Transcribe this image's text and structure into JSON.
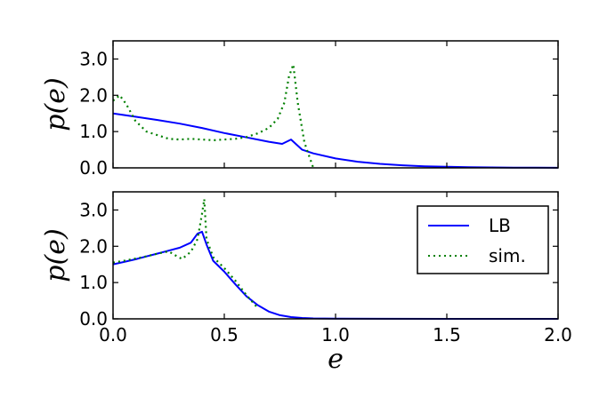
{
  "chart_data": [
    {
      "type": "line",
      "title": "",
      "xlabel": "",
      "ylabel": "p(e)",
      "xlim": [
        0.0,
        2.0
      ],
      "ylim": [
        0.0,
        3.5
      ],
      "xticks": [
        "0.0",
        "0.5",
        "1.0",
        "1.5",
        "2.0"
      ],
      "xticks_shown": false,
      "yticks": [
        "0.0",
        "1.0",
        "2.0",
        "3.0"
      ],
      "grid": false,
      "legend": false,
      "series": [
        {
          "name": "LB",
          "color": "#0000ff",
          "style": "solid",
          "x": [
            0.0,
            0.1,
            0.2,
            0.3,
            0.4,
            0.5,
            0.6,
            0.7,
            0.76,
            0.8,
            0.85,
            0.9,
            1.0,
            1.1,
            1.2,
            1.3,
            1.4,
            1.5,
            1.6,
            1.7,
            1.8,
            1.9,
            2.0
          ],
          "y": [
            1.5,
            1.41,
            1.32,
            1.22,
            1.1,
            0.96,
            0.84,
            0.72,
            0.66,
            0.78,
            0.5,
            0.4,
            0.26,
            0.17,
            0.11,
            0.07,
            0.045,
            0.03,
            0.02,
            0.012,
            0.008,
            0.005,
            0.003
          ]
        },
        {
          "name": "sim.",
          "color": "#008000",
          "style": "dotted",
          "x": [
            0.0,
            0.03,
            0.06,
            0.1,
            0.15,
            0.2,
            0.25,
            0.3,
            0.35,
            0.4,
            0.45,
            0.5,
            0.55,
            0.6,
            0.65,
            0.7,
            0.74,
            0.77,
            0.79,
            0.81,
            0.83,
            0.86,
            0.9
          ],
          "y": [
            1.85,
            2.0,
            1.75,
            1.3,
            1.0,
            0.9,
            0.8,
            0.78,
            0.8,
            0.78,
            0.76,
            0.78,
            0.8,
            0.85,
            0.95,
            1.1,
            1.35,
            1.8,
            2.5,
            2.85,
            1.8,
            0.7,
            0.0
          ]
        }
      ]
    },
    {
      "type": "line",
      "title": "",
      "xlabel": "e",
      "ylabel": "p(e)",
      "xlim": [
        0.0,
        2.0
      ],
      "ylim": [
        0.0,
        3.5
      ],
      "xticks": [
        "0.0",
        "0.5",
        "1.0",
        "1.5",
        "2.0"
      ],
      "xticks_shown": true,
      "yticks": [
        "0.0",
        "1.0",
        "2.0",
        "3.0"
      ],
      "grid": false,
      "legend": "top-right",
      "series": [
        {
          "name": "LB",
          "color": "#0000ff",
          "style": "solid",
          "x": [
            0.0,
            0.05,
            0.1,
            0.15,
            0.2,
            0.25,
            0.3,
            0.35,
            0.38,
            0.4,
            0.42,
            0.45,
            0.5,
            0.55,
            0.6,
            0.65,
            0.7,
            0.75,
            0.8,
            0.85,
            0.9,
            1.0,
            1.2,
            1.5,
            2.0
          ],
          "y": [
            1.5,
            1.57,
            1.64,
            1.72,
            1.8,
            1.88,
            1.96,
            2.1,
            2.35,
            2.4,
            2.05,
            1.6,
            1.3,
            0.95,
            0.62,
            0.38,
            0.2,
            0.1,
            0.05,
            0.025,
            0.012,
            0.005,
            0.002,
            0.0,
            0.0
          ]
        },
        {
          "name": "sim.",
          "color": "#008000",
          "style": "dotted",
          "x": [
            0.0,
            0.05,
            0.1,
            0.15,
            0.2,
            0.25,
            0.28,
            0.31,
            0.35,
            0.38,
            0.4,
            0.41,
            0.42,
            0.45,
            0.5,
            0.55,
            0.6,
            0.65
          ],
          "y": [
            1.55,
            1.6,
            1.66,
            1.72,
            1.8,
            1.86,
            1.75,
            1.65,
            1.85,
            2.2,
            2.9,
            3.3,
            2.2,
            1.7,
            1.4,
            1.05,
            0.65,
            0.3
          ]
        }
      ]
    }
  ]
}
